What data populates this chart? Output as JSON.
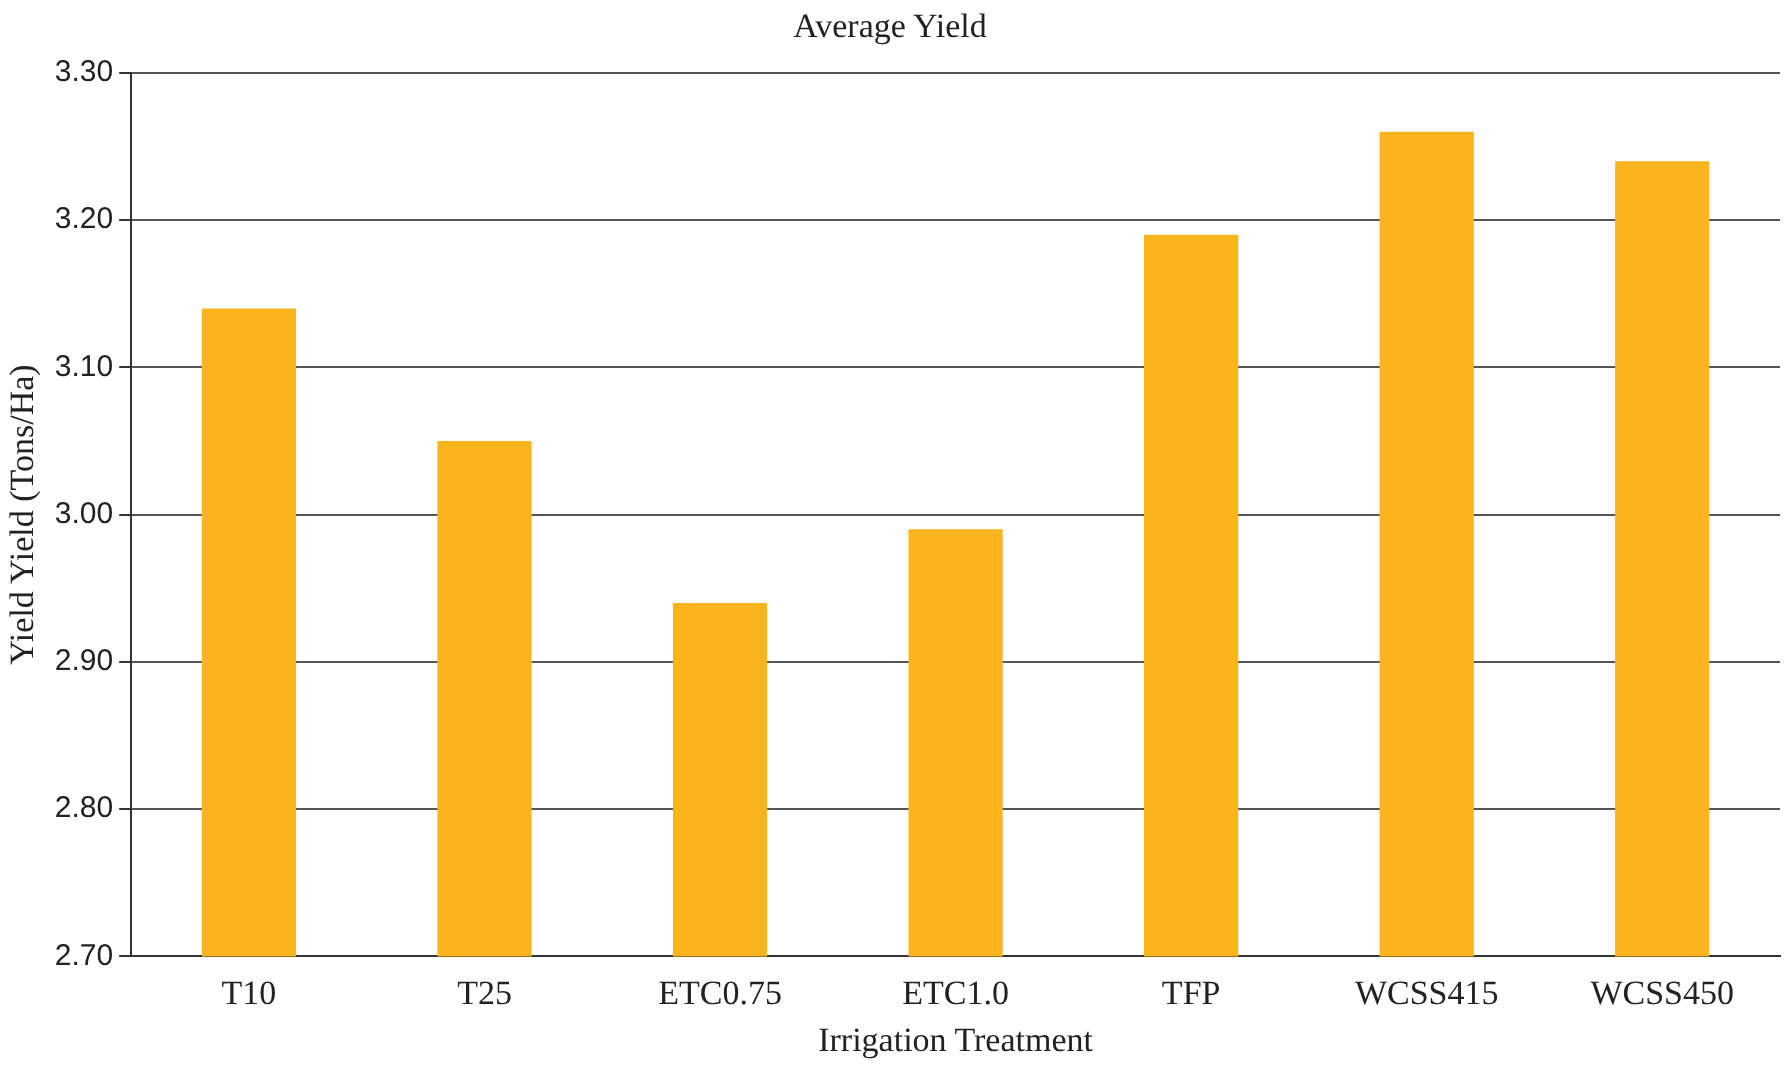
{
  "chart_data": {
    "type": "bar",
    "title": "Average Yield",
    "xlabel": "Irrigation Treatment",
    "ylabel": "Yield Yield (Tons/Ha)",
    "categories": [
      "T10",
      "T25",
      "ETC0.75",
      "ETC1.0",
      "TFP",
      "WCSS415",
      "WCSS450"
    ],
    "values": [
      3.14,
      3.05,
      2.94,
      2.99,
      3.19,
      3.26,
      3.24
    ],
    "color": "#fbb41e",
    "ylim": [
      2.7,
      3.3
    ],
    "yticks": [
      {
        "value": 2.7,
        "label": "2.70"
      },
      {
        "value": 2.8,
        "label": "2.80"
      },
      {
        "value": 2.9,
        "label": "2.90"
      },
      {
        "value": 3.0,
        "label": "3.00"
      },
      {
        "value": 3.1,
        "label": "3.10"
      },
      {
        "value": 3.2,
        "label": "3.20"
      },
      {
        "value": 3.3,
        "label": "3.30"
      }
    ],
    "grid": "y",
    "legend": false
  }
}
